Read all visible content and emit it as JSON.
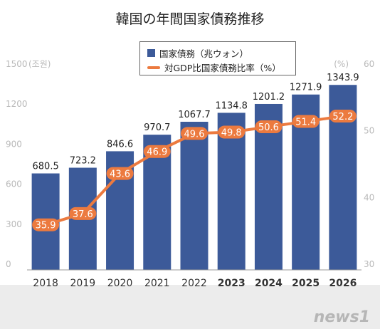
{
  "title": "韓国の年間国家債務推移",
  "watermark": "news1",
  "colors": {
    "bar": "#3c5a99",
    "line": "#ec7a3f",
    "label_bg": "#ec7a3f",
    "axis_text": "#b9b9b9",
    "bg_band": "#ececec"
  },
  "chart_data": {
    "type": "bar",
    "categories": [
      "2018",
      "2019",
      "2020",
      "2021",
      "2022",
      "2023",
      "2024",
      "2025",
      "2026"
    ],
    "series": [
      {
        "name": "国家債務（兆ウォン）",
        "type": "bar",
        "axis": "left",
        "values": [
          680.5,
          723.2,
          846.6,
          970.7,
          1067.7,
          1134.8,
          1201.2,
          1271.9,
          1343.9
        ],
        "labels": [
          "680.5",
          "723.2",
          "846.6",
          "970.7",
          "1067.7",
          "1134.8",
          "1201.2",
          "1271.9",
          "1343.9"
        ]
      },
      {
        "name": "対GDP比国家債務比率（%）",
        "type": "line",
        "axis": "right",
        "values": [
          35.9,
          37.6,
          43.6,
          46.9,
          49.6,
          49.8,
          50.6,
          51.4,
          52.2
        ],
        "labels": [
          "35.9",
          "37.6",
          "43.6",
          "46.9",
          "49.6",
          "49.8",
          "50.6",
          "51.4",
          "52.2"
        ]
      }
    ],
    "left_axis": {
      "unit_label": "(조원)",
      "ticks": [
        "0",
        "300",
        "600",
        "900",
        "1200",
        "1500"
      ],
      "ylim": [
        0,
        1500
      ]
    },
    "right_axis": {
      "unit_label": "(%)",
      "ticks": [
        "30",
        "40",
        "50",
        "60"
      ],
      "ylim": [
        30,
        60
      ]
    },
    "bold_categories": [
      "2023",
      "2024",
      "2025",
      "2026"
    ],
    "legend_position": "top-center"
  }
}
